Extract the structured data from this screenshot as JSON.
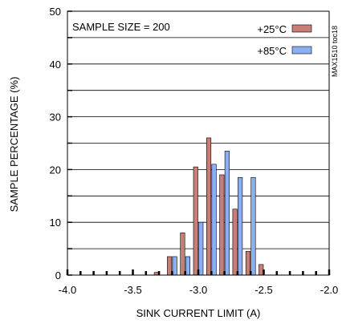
{
  "chart_data": {
    "type": "bar",
    "xlabel": "SINK CURRENT LIMIT (A)",
    "ylabel": "SAMPLE PERCENTAGE (%)",
    "xlim": [
      -4.0,
      -2.0
    ],
    "ylim": [
      0,
      50
    ],
    "xticks": [
      "-4.0",
      "-3.5",
      "-3.0",
      "-2.5",
      "-2.0"
    ],
    "yticks": [
      "0",
      "10",
      "20",
      "30",
      "40",
      "50"
    ],
    "grid": true,
    "legend": "top-right",
    "annotation": "SAMPLE SIZE = 200",
    "figure_id": "MAX1510 toc18",
    "colors": {
      "s25": "#c87d76",
      "s85": "#8caef5"
    },
    "series": [
      {
        "name": "+25°C",
        "x": [
          -3.3,
          -3.2,
          -3.1,
          -3.0,
          -2.9,
          -2.8,
          -2.7,
          -2.6,
          -2.5
        ],
        "values": [
          0.5,
          3.5,
          8.0,
          20.5,
          26.0,
          19.0,
          12.5,
          4.5,
          2.0
        ]
      },
      {
        "name": "+85°C",
        "x": [
          -3.2,
          -3.1,
          -3.0,
          -2.9,
          -2.8,
          -2.7,
          -2.6
        ],
        "values": [
          3.5,
          3.5,
          10.0,
          21.0,
          23.5,
          18.5,
          18.5
        ]
      }
    ]
  }
}
